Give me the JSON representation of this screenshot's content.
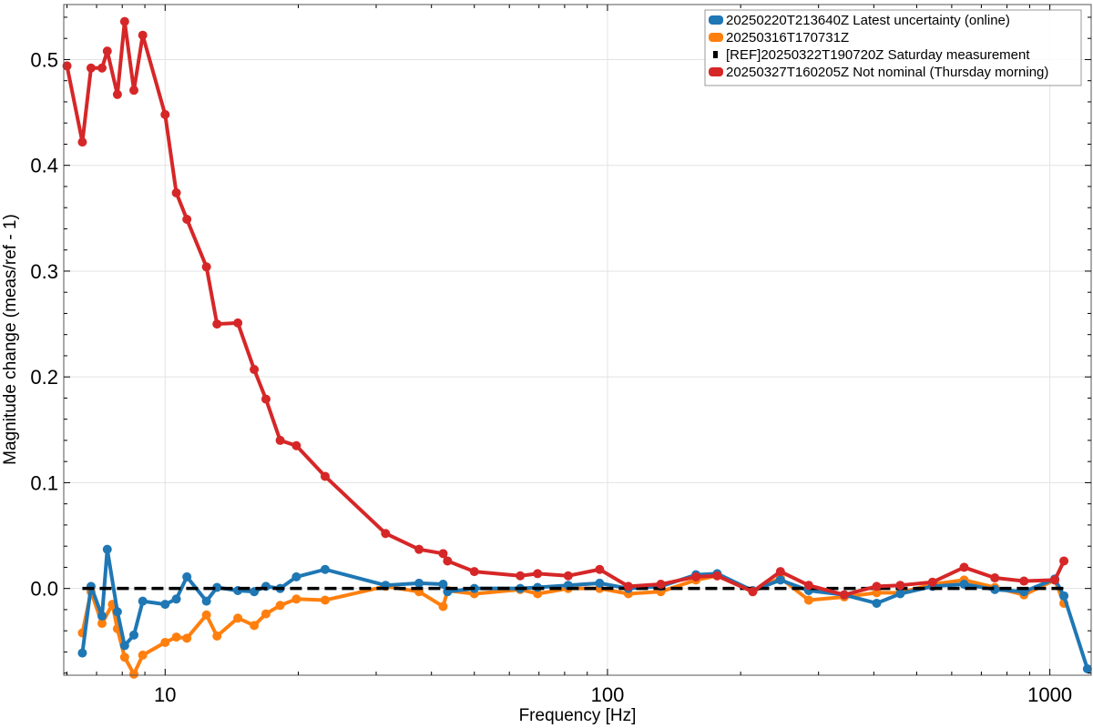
{
  "chart_data": {
    "type": "line",
    "title": "",
    "xlabel": "Frequency [Hz]",
    "ylabel": "Magnitude change (meas/ref - 1)",
    "xscale": "log",
    "xlim": [
      5.9,
      1240
    ],
    "ylim": [
      -0.082,
      0.552
    ],
    "xticks": [
      10,
      100,
      1000
    ],
    "xtick_labels": [
      "10",
      "100",
      "1000"
    ],
    "yticks": [
      0.0,
      0.1,
      0.2,
      0.3,
      0.4,
      0.5
    ],
    "ytick_labels": [
      "0.0",
      "0.1",
      "0.2",
      "0.3",
      "0.4",
      "0.5"
    ],
    "grid": true,
    "legend_position": "top-right",
    "series": [
      {
        "name": "20250220T213640Z Latest uncertainty (online)",
        "color": "#1f77b4",
        "style": "solid-markers",
        "points": [
          [
            6.5,
            -0.061
          ],
          [
            6.8,
            0.002
          ],
          [
            7.2,
            -0.026
          ],
          [
            7.4,
            0.037
          ],
          [
            7.8,
            -0.022
          ],
          [
            8.1,
            -0.054
          ],
          [
            8.5,
            -0.044
          ],
          [
            8.9,
            -0.012
          ],
          [
            10.0,
            -0.015
          ],
          [
            10.6,
            -0.01
          ],
          [
            11.2,
            0.011
          ],
          [
            12.4,
            -0.012
          ],
          [
            13.1,
            0.001
          ],
          [
            14.6,
            -0.002
          ],
          [
            15.9,
            -0.003
          ],
          [
            16.9,
            0.002
          ],
          [
            18.2,
            0.0
          ],
          [
            19.8,
            0.011
          ],
          [
            23.0,
            0.018
          ],
          [
            31.5,
            0.003
          ],
          [
            37.5,
            0.005
          ],
          [
            42.5,
            0.004
          ],
          [
            43.5,
            -0.003
          ],
          [
            50.0,
            0.0
          ],
          [
            63.5,
            0.0
          ],
          [
            69.5,
            0.001
          ],
          [
            81.5,
            0.003
          ],
          [
            96.0,
            0.005
          ],
          [
            111.5,
            0.0
          ],
          [
            132.0,
            0.002
          ],
          [
            158.5,
            0.013
          ],
          [
            177.0,
            0.014
          ],
          [
            213.0,
            -0.002
          ],
          [
            246.0,
            0.008
          ],
          [
            285.0,
            -0.002
          ],
          [
            343.0,
            -0.006
          ],
          [
            406.0,
            -0.014
          ],
          [
            459.0,
            -0.005
          ],
          [
            543.0,
            0.002
          ],
          [
            640.0,
            0.004
          ],
          [
            751.0,
            -0.001
          ],
          [
            874.0,
            -0.003
          ],
          [
            1026.0,
            0.009
          ],
          [
            1076.0,
            -0.007
          ],
          [
            1216.0,
            -0.076
          ]
        ]
      },
      {
        "name": "20250316T170731Z",
        "color": "#ff7f0e",
        "style": "solid-markers",
        "points": [
          [
            6.5,
            -0.042
          ],
          [
            6.8,
            -0.003
          ],
          [
            7.2,
            -0.033
          ],
          [
            7.6,
            -0.015
          ],
          [
            7.8,
            -0.038
          ],
          [
            8.1,
            -0.065
          ],
          [
            8.5,
            -0.081
          ],
          [
            8.9,
            -0.063
          ],
          [
            10.0,
            -0.051
          ],
          [
            10.6,
            -0.046
          ],
          [
            11.2,
            -0.047
          ],
          [
            12.4,
            -0.025
          ],
          [
            13.1,
            -0.045
          ],
          [
            14.6,
            -0.028
          ],
          [
            15.9,
            -0.035
          ],
          [
            16.9,
            -0.024
          ],
          [
            18.2,
            -0.016
          ],
          [
            19.8,
            -0.01
          ],
          [
            23.0,
            -0.011
          ],
          [
            31.5,
            0.002
          ],
          [
            37.5,
            -0.003
          ],
          [
            42.5,
            -0.017
          ],
          [
            43.5,
            -0.002
          ],
          [
            50.0,
            -0.005
          ],
          [
            63.5,
            -0.001
          ],
          [
            69.5,
            -0.005
          ],
          [
            81.5,
            0.0
          ],
          [
            96.0,
            0.0
          ],
          [
            111.5,
            -0.005
          ],
          [
            132.0,
            -0.003
          ],
          [
            158.5,
            0.008
          ],
          [
            177.0,
            0.012
          ],
          [
            213.0,
            -0.003
          ],
          [
            246.0,
            0.01
          ],
          [
            285.0,
            -0.011
          ],
          [
            343.0,
            -0.008
          ],
          [
            406.0,
            -0.004
          ],
          [
            459.0,
            -0.004
          ],
          [
            543.0,
            0.004
          ],
          [
            640.0,
            0.008
          ],
          [
            751.0,
            0.001
          ],
          [
            874.0,
            -0.006
          ],
          [
            1026.0,
            0.008
          ],
          [
            1076.0,
            -0.014
          ]
        ]
      },
      {
        "name": "[REF]20250322T190720Z Saturday measurement",
        "color": "#000000",
        "style": "dashed",
        "points": [
          [
            6.5,
            0.0
          ],
          [
            1076.0,
            0.0
          ]
        ]
      },
      {
        "name": "20250327T160205Z Not nominal (Thursday morning)",
        "color": "#d62728",
        "style": "solid-markers",
        "points": [
          [
            6.0,
            0.494
          ],
          [
            6.5,
            0.422
          ],
          [
            6.8,
            0.492
          ],
          [
            7.2,
            0.492
          ],
          [
            7.4,
            0.508
          ],
          [
            7.8,
            0.467
          ],
          [
            8.1,
            0.536
          ],
          [
            8.5,
            0.471
          ],
          [
            8.9,
            0.523
          ],
          [
            10.0,
            0.448
          ],
          [
            10.6,
            0.374
          ],
          [
            11.2,
            0.349
          ],
          [
            12.4,
            0.304
          ],
          [
            13.1,
            0.25
          ],
          [
            14.6,
            0.251
          ],
          [
            15.9,
            0.207
          ],
          [
            16.9,
            0.179
          ],
          [
            18.2,
            0.14
          ],
          [
            19.8,
            0.135
          ],
          [
            23.0,
            0.106
          ],
          [
            31.5,
            0.052
          ],
          [
            37.5,
            0.037
          ],
          [
            42.5,
            0.033
          ],
          [
            43.5,
            0.026
          ],
          [
            50.0,
            0.016
          ],
          [
            63.5,
            0.012
          ],
          [
            69.5,
            0.014
          ],
          [
            81.5,
            0.012
          ],
          [
            96.0,
            0.018
          ],
          [
            111.5,
            0.002
          ],
          [
            132.0,
            0.004
          ],
          [
            158.5,
            0.011
          ],
          [
            177.0,
            0.012
          ],
          [
            213.0,
            -0.003
          ],
          [
            246.0,
            0.016
          ],
          [
            285.0,
            0.003
          ],
          [
            343.0,
            -0.006
          ],
          [
            406.0,
            0.002
          ],
          [
            459.0,
            0.003
          ],
          [
            543.0,
            0.006
          ],
          [
            640.0,
            0.02
          ],
          [
            751.0,
            0.01
          ],
          [
            874.0,
            0.007
          ],
          [
            1026.0,
            0.008
          ],
          [
            1076.0,
            0.026
          ]
        ]
      }
    ]
  }
}
